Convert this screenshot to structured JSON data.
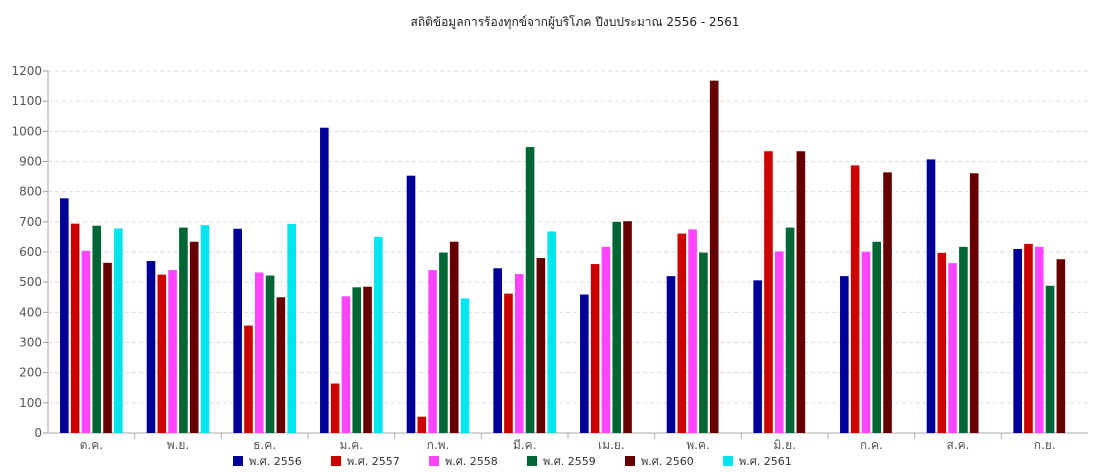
{
  "chart_data": {
    "type": "bar",
    "title": "สถิติข้อมูลการร้องทุกข์จากผู้บริโภค ปีงบประมาณ 2556 - 2561",
    "xlabel": "",
    "ylabel": "",
    "ylim": [
      0,
      1200
    ],
    "yticks": [
      0,
      100,
      200,
      300,
      400,
      500,
      600,
      700,
      800,
      900,
      1000,
      1100,
      1200
    ],
    "grid": true,
    "legend_position": "bottom",
    "categories": [
      "ต.ค.",
      "พ.ย.",
      "ธ.ค.",
      "ม.ค.",
      "ก.พ.",
      "มี.ค.",
      "เม.ย.",
      "พ.ค.",
      "มิ.ย.",
      "ก.ค.",
      "ส.ค.",
      "ก.ย."
    ],
    "series": [
      {
        "name": "พ.ศ. 2556",
        "color": "#000099",
        "values": [
          778,
          570,
          677,
          1012,
          853,
          546,
          459,
          520,
          506,
          520,
          907,
          610
        ]
      },
      {
        "name": "พ.ศ. 2557",
        "color": "#cc0000",
        "values": [
          694,
          525,
          356,
          164,
          54,
          462,
          560,
          661,
          934,
          887,
          597,
          627
        ]
      },
      {
        "name": "พ.ศ. 2558",
        "color": "#ff44ff",
        "values": [
          604,
          540,
          532,
          453,
          540,
          527,
          617,
          675,
          602,
          601,
          563,
          617
        ]
      },
      {
        "name": "พ.ศ. 2559",
        "color": "#006633",
        "values": [
          687,
          681,
          522,
          483,
          598,
          948,
          700,
          598,
          681,
          634,
          617,
          488
        ]
      },
      {
        "name": "พ.ศ. 2560",
        "color": "#660000",
        "values": [
          564,
          634,
          450,
          485,
          634,
          580,
          702,
          1168,
          934,
          864,
          861,
          576
        ]
      },
      {
        "name": "พ.ศ. 2561",
        "color": "#00e5ee",
        "values": [
          678,
          689,
          693,
          650,
          446,
          668,
          null,
          null,
          null,
          null,
          null,
          null
        ]
      }
    ]
  }
}
